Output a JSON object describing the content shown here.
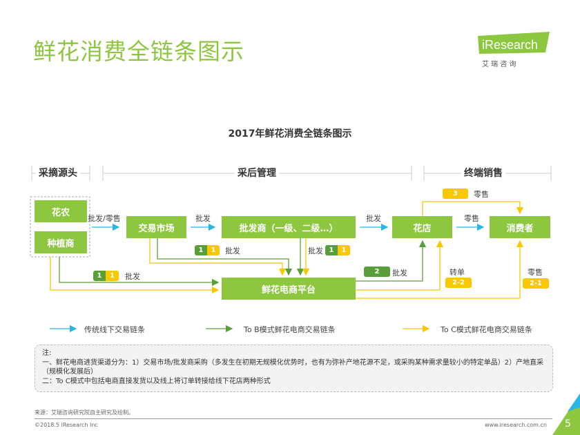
{
  "header": {
    "title": "鲜花消费全链条图示",
    "logo_text": "iResearch",
    "logo_sub": "艾 瑞 咨 询"
  },
  "diagram": {
    "title": "2017年鲜花消费全链条图示",
    "sections": [
      "采摘源头",
      "采后管理",
      "终端销售"
    ],
    "nodes": {
      "farmer": "花农",
      "grower": "种植商",
      "market": "交易市场",
      "wholesaler": "批发商（一级、二级…）",
      "shop": "花店",
      "consumer": "消费者",
      "platform": "鲜花电商平台"
    },
    "edge_labels": {
      "wholesale_retail": "批发/零售",
      "wholesale": "批发",
      "retail": "零售",
      "transfer": "转单"
    },
    "badges": {
      "one": "1",
      "two": "2",
      "three": "3",
      "two_one": "2-1",
      "two_two": "2-2"
    },
    "legend": [
      "传统线下交易链条",
      "To B模式鲜花电商交易链条",
      "To C模式鲜花电商交易链条"
    ],
    "colors": {
      "node": "#8dc63f",
      "traditional": "#29b6e0",
      "to_b": "#5a9e3a",
      "to_c": "#f9c800"
    }
  },
  "note": {
    "lines": [
      "注:",
      "一、鲜花电商进货渠道分为：1）交易市场/批发商采购（多发生在初期无规模化优势时，也有为弥补产地花源不足，或采购某种需求量较小的特定单品）2）产地直采（规模化发展后）",
      "二：To C模式中包括电商直接发货以及线上将订单转接给线下花店两种形式"
    ]
  },
  "footer": {
    "source": "来源：艾瑞咨询研究院自主研究及绘制。",
    "copyright": "©2018.5 iResearch Inc",
    "url": "www.iresearch.com.cn",
    "page": "5"
  }
}
